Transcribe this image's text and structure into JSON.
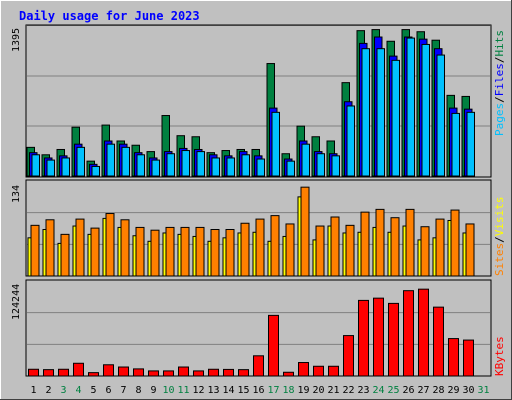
{
  "chart_data": {
    "type": "bar",
    "title": "Daily usage for June 2023",
    "days": [
      "1",
      "2",
      "3",
      "4",
      "5",
      "6",
      "7",
      "8",
      "9",
      "10",
      "11",
      "12",
      "13",
      "14",
      "15",
      "16",
      "17",
      "18",
      "19",
      "20",
      "21",
      "22",
      "23",
      "24",
      "25",
      "26",
      "27",
      "28",
      "29",
      "30",
      "31"
    ],
    "weekend_days": [
      "3",
      "4",
      "10",
      "11",
      "17",
      "18",
      "24",
      "25",
      "31"
    ],
    "panels": {
      "hits_files_pages": {
        "ymax_label": "1395",
        "ylim": [
          0,
          1395
        ],
        "series": [
          {
            "name": "Hits",
            "color": "#008040",
            "values": [
              270,
              200,
              250,
              460,
              140,
              480,
              330,
              290,
              230,
              570,
              380,
              370,
              220,
              240,
              250,
              250,
              1060,
              210,
              470,
              370,
              330,
              880,
              1370,
              1380,
              1270,
              1380,
              1360,
              1280,
              760,
              750,
              0
            ]
          },
          {
            "name": "Files",
            "color": "#0000ff",
            "values": [
              220,
              170,
              190,
              300,
              110,
              330,
              300,
              220,
              170,
              230,
              260,
              250,
              200,
              190,
              230,
              190,
              640,
              160,
              330,
              230,
              210,
              700,
              1250,
              1310,
              1130,
              1310,
              1290,
              1200,
              640,
              630,
              0
            ]
          },
          {
            "name": "Pages",
            "color": "#00c0ff",
            "values": [
              200,
              150,
              170,
              270,
              90,
              300,
              270,
              200,
              150,
              210,
              240,
              230,
              170,
              170,
              200,
              160,
              600,
              140,
              300,
              210,
              190,
              660,
              1200,
              1200,
              1090,
              1300,
              1240,
              1140,
              590,
              600,
              0
            ]
          }
        ]
      },
      "visits_sites": {
        "ymax_label": "134",
        "ylim": [
          0,
          134
        ],
        "series": [
          {
            "name": "Visits",
            "color": "#ffff00",
            "values": [
              55,
              67,
              47,
              72,
              60,
              83,
              70,
              58,
              50,
              62,
              60,
              57,
              50,
              55,
              62,
              63,
              50,
              57,
              114,
              52,
              72,
              62,
              63,
              70,
              63,
              72,
              52,
              55,
              80,
              62,
              0
            ]
          },
          {
            "name": "Sites",
            "color": "#ff8000",
            "values": [
              73,
              81,
              60,
              82,
              69,
              90,
              81,
              70,
              66,
              70,
              70,
              70,
              67,
              67,
              76,
              82,
              87,
              75,
              128,
              72,
              85,
              73,
              92,
              96,
              84,
              96,
              71,
              82,
              95,
              75,
              0
            ]
          }
        ]
      },
      "kbytes": {
        "ymax_label": "124244",
        "ylim": [
          0,
          124244
        ],
        "series": [
          {
            "name": "KBytes",
            "color": "#ff0000",
            "values": [
              9000,
              8500,
              9000,
              17000,
              4500,
              15000,
              12000,
              9500,
              6800,
              6800,
              12000,
              6800,
              9000,
              8800,
              8500,
              27000,
              81000,
              5000,
              18000,
              13000,
              13000,
              54000,
              101000,
              104000,
              97000,
              114000,
              116000,
              92000,
              50000,
              48000,
              0
            ]
          }
        ]
      }
    }
  },
  "side_labels": {
    "pages": "Pages",
    "files": "Files",
    "hits": "Hits",
    "sites": "Sites",
    "visits": "Visits",
    "kbytes": "KBytes",
    "slash": "/"
  },
  "colors": {
    "background": "#c0c0c0",
    "title": "#0000ff",
    "weekday": "#000000",
    "weekend": "#008040",
    "grid": "#808080"
  }
}
